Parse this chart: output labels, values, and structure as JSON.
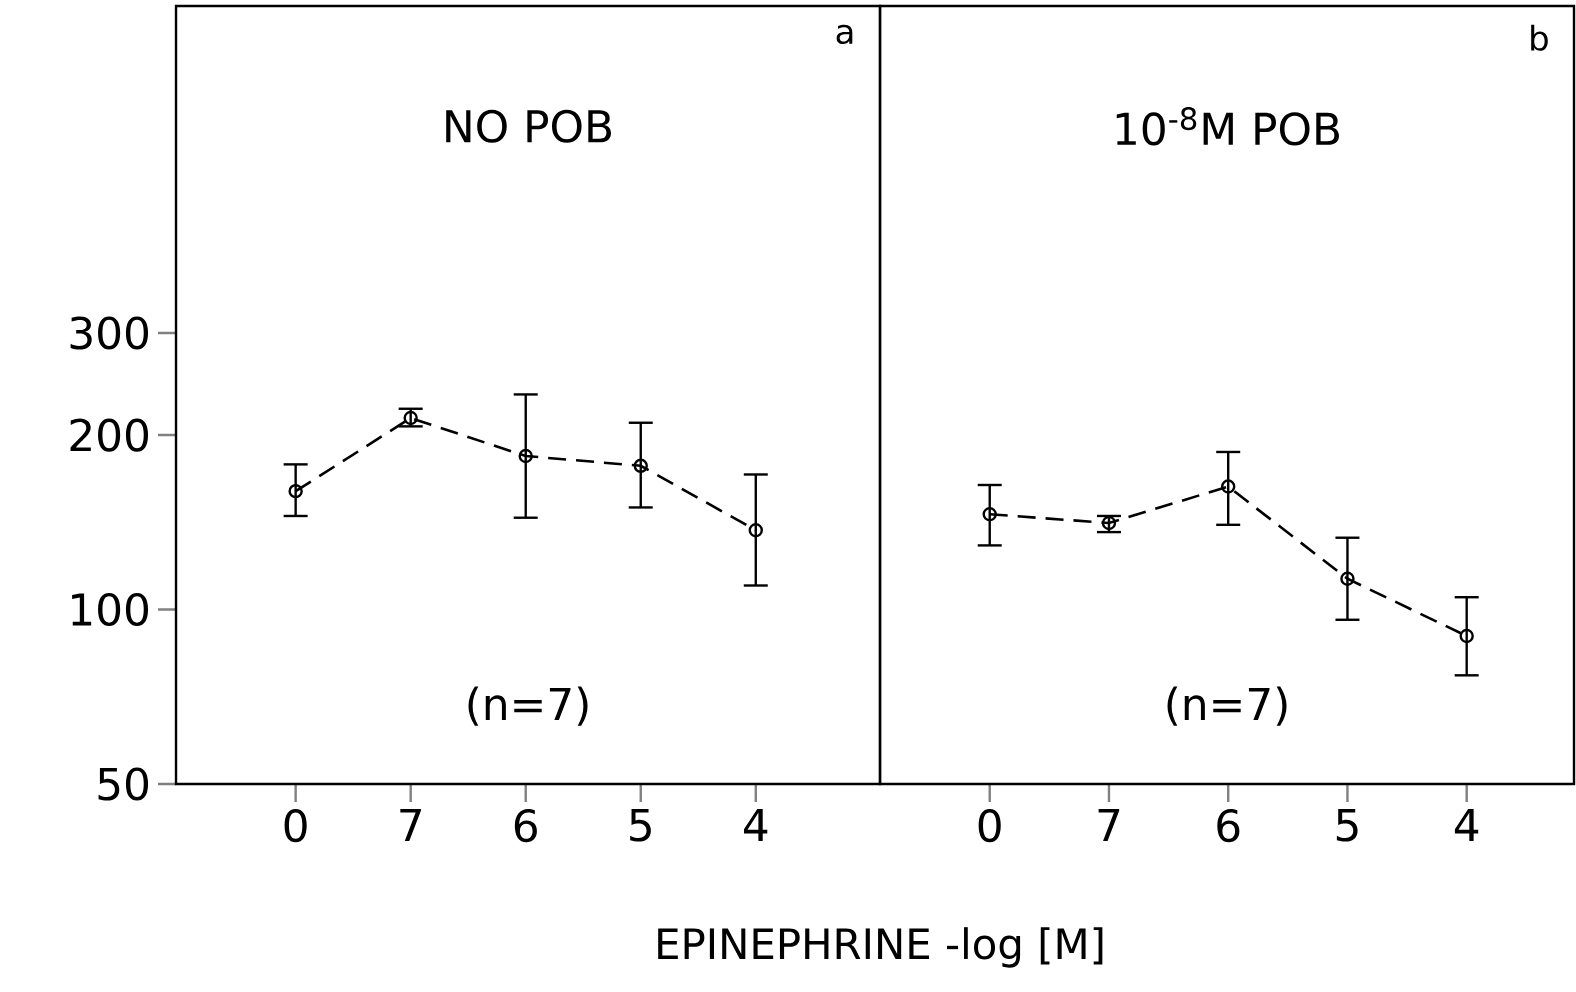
{
  "chart_data": [
    {
      "type": "line",
      "title": "NO POB",
      "categories": [
        "0",
        "7",
        "6",
        "5",
        "4"
      ],
      "ylim": [
        50,
        1100
      ],
      "yticks": [
        50,
        100,
        200,
        300
      ],
      "log": true,
      "marker": "circle",
      "line_style": "dashed",
      "grid": false,
      "annotations": [
        "(n=7)",
        "a"
      ],
      "series": [
        {
          "color": "#000000",
          "values": [
            160,
            214,
            184,
            177,
            137
          ],
          "errors": [
            [
              145,
              178
            ],
            [
              207,
              222
            ],
            [
              144,
              235
            ],
            [
              150,
              210
            ],
            [
              110,
              171
            ]
          ]
        }
      ]
    },
    {
      "type": "line",
      "title": "10$^{-8}$M  POB",
      "xlabel": "EPINEPHRINE   -log [M]",
      "categories": [
        "0",
        "7",
        "6",
        "5",
        "4"
      ],
      "ylim": [
        50,
        1100
      ],
      "yticks": [
        50,
        100,
        200,
        300
      ],
      "log": true,
      "tick_labels": "x",
      "marker": "circle",
      "line_style": "dashed",
      "grid": false,
      "annotations": [
        "(n=7)",
        "b"
      ],
      "series": [
        {
          "color": "#000000",
          "values": [
            146,
            141,
            163,
            113,
            90
          ],
          "errors": [
            [
              129,
              164
            ],
            [
              136,
              145
            ],
            [
              140,
              187
            ],
            [
              96,
              133
            ],
            [
              77,
              105
            ]
          ]
        }
      ]
    }
  ]
}
